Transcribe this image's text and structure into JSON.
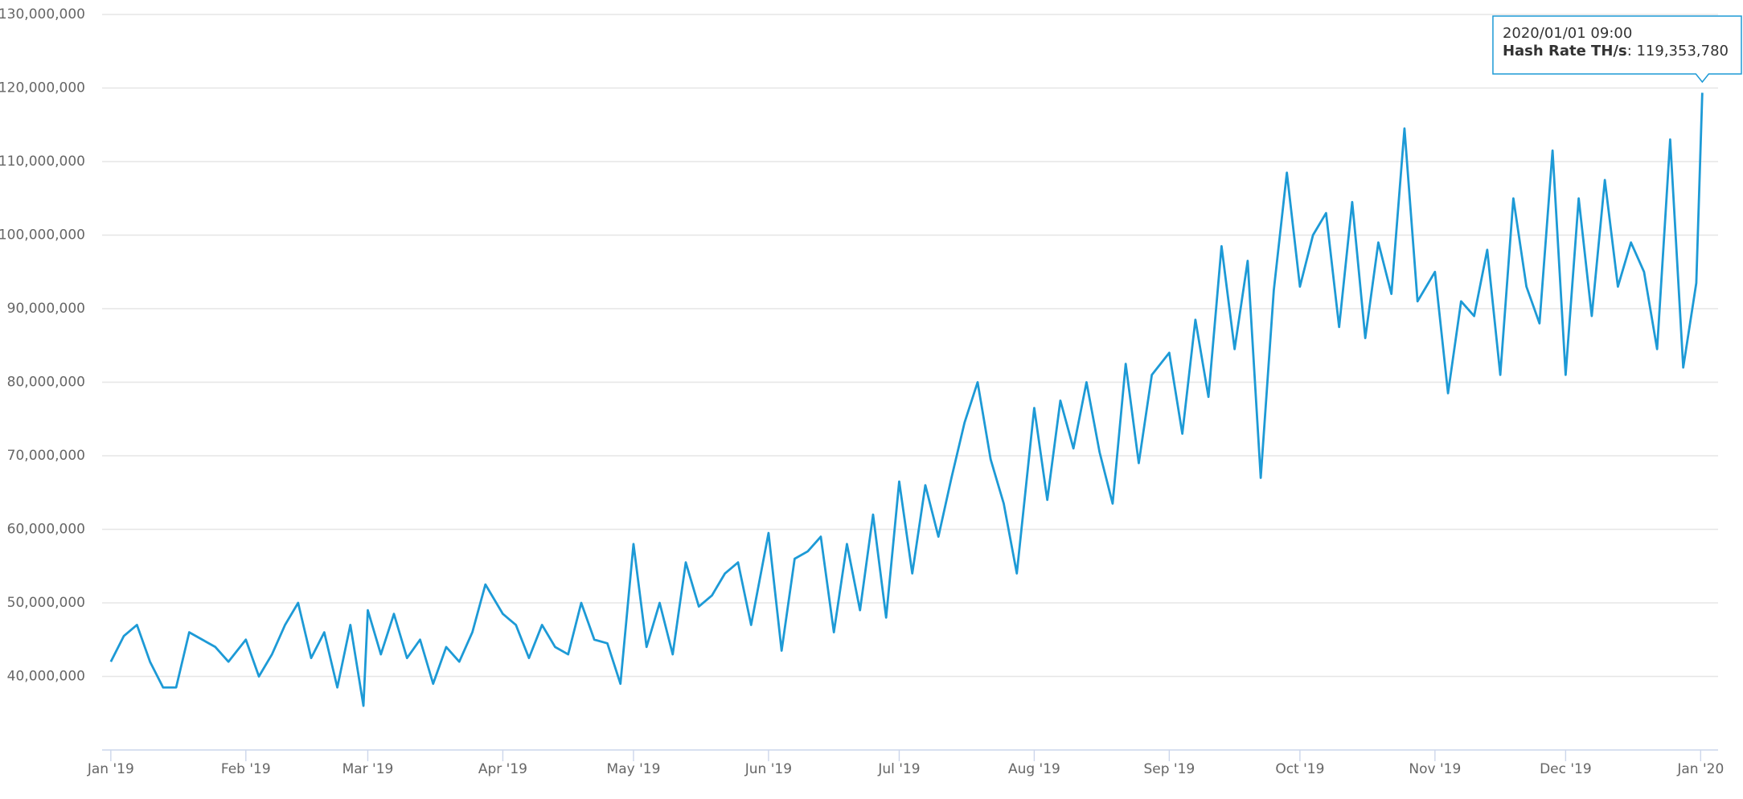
{
  "chart_data": {
    "type": "line",
    "x": [
      "2019/01/01",
      "2019/01/04",
      "2019/01/07",
      "2019/01/10",
      "2019/01/13",
      "2019/01/16",
      "2019/01/19",
      "2019/01/22",
      "2019/01/25",
      "2019/01/28",
      "2019/02/01",
      "2019/02/04",
      "2019/02/07",
      "2019/02/10",
      "2019/02/13",
      "2019/02/16",
      "2019/02/19",
      "2019/02/22",
      "2019/02/25",
      "2019/02/28",
      "2019/03/01",
      "2019/03/04",
      "2019/03/07",
      "2019/03/10",
      "2019/03/13",
      "2019/03/16",
      "2019/03/19",
      "2019/03/22",
      "2019/03/25",
      "2019/03/28",
      "2019/04/01",
      "2019/04/04",
      "2019/04/07",
      "2019/04/10",
      "2019/04/13",
      "2019/04/16",
      "2019/04/19",
      "2019/04/22",
      "2019/04/25",
      "2019/04/28",
      "2019/05/01",
      "2019/05/04",
      "2019/05/07",
      "2019/05/10",
      "2019/05/13",
      "2019/05/16",
      "2019/05/19",
      "2019/05/22",
      "2019/05/25",
      "2019/05/28",
      "2019/06/01",
      "2019/06/04",
      "2019/06/07",
      "2019/06/10",
      "2019/06/13",
      "2019/06/16",
      "2019/06/19",
      "2019/06/22",
      "2019/06/25",
      "2019/06/28",
      "2019/07/01",
      "2019/07/04",
      "2019/07/07",
      "2019/07/10",
      "2019/07/13",
      "2019/07/16",
      "2019/07/19",
      "2019/07/22",
      "2019/07/25",
      "2019/07/28",
      "2019/08/01",
      "2019/08/04",
      "2019/08/07",
      "2019/08/10",
      "2019/08/13",
      "2019/08/16",
      "2019/08/19",
      "2019/08/22",
      "2019/08/25",
      "2019/08/28",
      "2019/09/01",
      "2019/09/04",
      "2019/09/07",
      "2019/09/10",
      "2019/09/13",
      "2019/09/16",
      "2019/09/19",
      "2019/09/22",
      "2019/09/25",
      "2019/09/28",
      "2019/10/01",
      "2019/10/04",
      "2019/10/07",
      "2019/10/10",
      "2019/10/13",
      "2019/10/16",
      "2019/10/19",
      "2019/10/22",
      "2019/10/25",
      "2019/10/28",
      "2019/11/01",
      "2019/11/04",
      "2019/11/07",
      "2019/11/10",
      "2019/11/13",
      "2019/11/16",
      "2019/11/19",
      "2019/11/22",
      "2019/11/25",
      "2019/11/28",
      "2019/12/01",
      "2019/12/04",
      "2019/12/07",
      "2019/12/10",
      "2019/12/13",
      "2019/12/16",
      "2019/12/19",
      "2019/12/22",
      "2019/12/25",
      "2019/12/28",
      "2019/12/31",
      "2020/01/01 09:00"
    ],
    "series": [
      {
        "name": "Hash Rate TH/s",
        "color": "#1d9ad6",
        "values": [
          42000000,
          45500000,
          47000000,
          42000000,
          38500000,
          38500000,
          46000000,
          45000000,
          44000000,
          42000000,
          45000000,
          40000000,
          43000000,
          47000000,
          50000000,
          42500000,
          46000000,
          38500000,
          47000000,
          36000000,
          49000000,
          43000000,
          48500000,
          42500000,
          45000000,
          39000000,
          44000000,
          42000000,
          46000000,
          52500000,
          48500000,
          47000000,
          42500000,
          47000000,
          44000000,
          43000000,
          50000000,
          45000000,
          44500000,
          39000000,
          58000000,
          44000000,
          50000000,
          43000000,
          55500000,
          49500000,
          51000000,
          54000000,
          55500000,
          47000000,
          59500000,
          43500000,
          56000000,
          57000000,
          59000000,
          46000000,
          58000000,
          49000000,
          62000000,
          48000000,
          66500000,
          54000000,
          66000000,
          59000000,
          67000000,
          74500000,
          80000000,
          69500000,
          63500000,
          54000000,
          76500000,
          64000000,
          77500000,
          71000000,
          80000000,
          70500000,
          63500000,
          82500000,
          69000000,
          81000000,
          84000000,
          73000000,
          88500000,
          78000000,
          98500000,
          84500000,
          96500000,
          67000000,
          92500000,
          108500000,
          93000000,
          100000000,
          103000000,
          87500000,
          104500000,
          86000000,
          99000000,
          92000000,
          114500000,
          91000000,
          95000000,
          78500000,
          91000000,
          89000000,
          98000000,
          81000000,
          105000000,
          93000000,
          88000000,
          111500000,
          81000000,
          105000000,
          89000000,
          107500000,
          93000000,
          99000000,
          95000000,
          84500000,
          113000000,
          82000000,
          93500000,
          119353780
        ]
      }
    ],
    "xlim": [
      "2018/12/30",
      "2020/01/05"
    ],
    "xticks": [
      {
        "value": "2019/01/01",
        "label": "Jan '19"
      },
      {
        "value": "2019/02/01",
        "label": "Feb '19"
      },
      {
        "value": "2019/03/01",
        "label": "Mar '19"
      },
      {
        "value": "2019/04/01",
        "label": "Apr '19"
      },
      {
        "value": "2019/05/01",
        "label": "May '19"
      },
      {
        "value": "2019/06/01",
        "label": "Jun '19"
      },
      {
        "value": "2019/07/01",
        "label": "Jul '19"
      },
      {
        "value": "2019/08/01",
        "label": "Aug '19"
      },
      {
        "value": "2019/09/01",
        "label": "Sep '19"
      },
      {
        "value": "2019/10/01",
        "label": "Oct '19"
      },
      {
        "value": "2019/11/01",
        "label": "Nov '19"
      },
      {
        "value": "2019/12/01",
        "label": "Dec '19"
      },
      {
        "value": "2020/01/01",
        "label": "Jan '20"
      }
    ],
    "ylim": [
      30000000,
      130000000
    ],
    "yticks": [
      {
        "value": 40000000,
        "label": "40,000,000"
      },
      {
        "value": 50000000,
        "label": "50,000,000"
      },
      {
        "value": 60000000,
        "label": "60,000,000"
      },
      {
        "value": 70000000,
        "label": "70,000,000"
      },
      {
        "value": 80000000,
        "label": "80,000,000"
      },
      {
        "value": 90000000,
        "label": "90,000,000"
      },
      {
        "value": 100000000,
        "label": "100,000,000"
      },
      {
        "value": 110000000,
        "label": "110,000,000"
      },
      {
        "value": 120000000,
        "label": "120,000,000"
      },
      {
        "value": 130000000,
        "label": "130,000,000"
      }
    ],
    "grid": true,
    "tooltip": {
      "value_label": ": 119,353,780"
    }
  }
}
